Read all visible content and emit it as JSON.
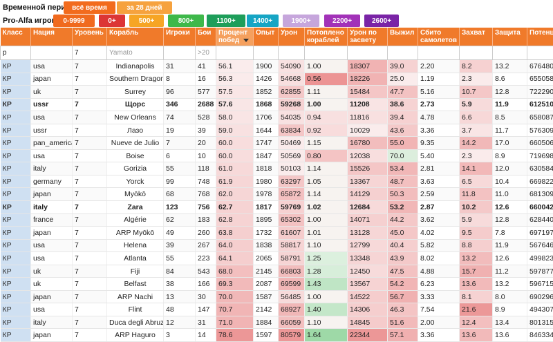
{
  "filters": {
    "period_label": "Временной период:",
    "period_buttons": [
      {
        "label": "всё время",
        "color": "#f26b1d"
      },
      {
        "label": "за 28 дней",
        "color": "#f6a23e"
      }
    ],
    "players_label": "Pro-Alfa игроков:",
    "player_buttons": [
      {
        "label": "0-9999",
        "color": "#f06a1e"
      },
      {
        "label": "0+",
        "color": "#dc3535"
      },
      {
        "label": "500+",
        "color": "#f6a524"
      },
      {
        "label": "800+",
        "color": "#3eb84a"
      },
      {
        "label": "1100+",
        "color": "#1e9e5a"
      },
      {
        "label": "1400+",
        "color": "#16a5c4"
      },
      {
        "label": "1900+",
        "color": "#c6a6dc"
      },
      {
        "label": "2200+",
        "color": "#a232b8"
      },
      {
        "label": "2600+",
        "color": "#7a24a6"
      }
    ]
  },
  "table": {
    "columns": [
      "Класс",
      "Нация",
      "Уровень",
      "Корабль",
      "Игроки",
      "Бои",
      "Процент побед",
      "Опыт",
      "Урон",
      "Потоплено кораблей",
      "Урон по засвету",
      "Выжил",
      "Сбито самолетов",
      "Захват",
      "Защита",
      "Потенциал"
    ],
    "filter_row": {
      "class_value": "р",
      "nation_value": "",
      "tier_value": "7",
      "ship_placeholder": "Yamato",
      "players_value": "",
      "battles_placeholder": ">20"
    },
    "rows": [
      {
        "cls": "КР",
        "nation": "usa",
        "tier": "7",
        "ship": "Indianapolis",
        "players": "31",
        "battles": "41",
        "win": "56.1",
        "exp": "1900",
        "dmg": "54090",
        "kills": "1.00",
        "spot": "18307",
        "surv": "39.0",
        "planes": "2.20",
        "cap": "8.2",
        "def": "13.2",
        "pot": "676480",
        "bold": false
      },
      {
        "cls": "КР",
        "nation": "japan",
        "tier": "7",
        "ship": "Southern Dragon",
        "players": "8",
        "battles": "16",
        "win": "56.3",
        "exp": "1426",
        "dmg": "54668",
        "kills": "0.56",
        "spot": "18226",
        "surv": "25.0",
        "planes": "1.19",
        "cap": "2.3",
        "def": "8.6",
        "pot": "655058",
        "bold": false
      },
      {
        "cls": "КР",
        "nation": "uk",
        "tier": "7",
        "ship": "Surrey",
        "players": "96",
        "battles": "577",
        "win": "57.5",
        "exp": "1852",
        "dmg": "62855",
        "kills": "1.11",
        "spot": "15484",
        "surv": "47.7",
        "planes": "5.16",
        "cap": "10.7",
        "def": "12.8",
        "pot": "722290",
        "bold": false
      },
      {
        "cls": "КР",
        "nation": "ussr",
        "tier": "7",
        "ship": "Щорс",
        "players": "346",
        "battles": "2688",
        "win": "57.6",
        "exp": "1868",
        "dmg": "59268",
        "kills": "1.00",
        "spot": "11208",
        "surv": "38.6",
        "planes": "2.73",
        "cap": "5.9",
        "def": "11.9",
        "pot": "612510",
        "bold": true
      },
      {
        "cls": "КР",
        "nation": "usa",
        "tier": "7",
        "ship": "New Orleans",
        "players": "74",
        "battles": "528",
        "win": "58.0",
        "exp": "1706",
        "dmg": "54035",
        "kills": "0.94",
        "spot": "11816",
        "surv": "39.4",
        "planes": "4.78",
        "cap": "6.6",
        "def": "8.5",
        "pot": "658087",
        "bold": false
      },
      {
        "cls": "КР",
        "nation": "ussr",
        "tier": "7",
        "ship": "Лазо",
        "players": "19",
        "battles": "39",
        "win": "59.0",
        "exp": "1644",
        "dmg": "63834",
        "kills": "0.92",
        "spot": "10029",
        "surv": "43.6",
        "planes": "3.36",
        "cap": "3.7",
        "def": "11.7",
        "pot": "576309",
        "bold": false
      },
      {
        "cls": "КР",
        "nation": "pan_america",
        "tier": "7",
        "ship": "Nueve de Julio",
        "players": "7",
        "battles": "20",
        "win": "60.0",
        "exp": "1747",
        "dmg": "50469",
        "kills": "1.15",
        "spot": "16780",
        "surv": "55.0",
        "planes": "9.35",
        "cap": "14.2",
        "def": "17.0",
        "pot": "660506",
        "bold": false
      },
      {
        "cls": "КР",
        "nation": "usa",
        "tier": "7",
        "ship": "Boise",
        "players": "6",
        "battles": "10",
        "win": "60.0",
        "exp": "1847",
        "dmg": "50569",
        "kills": "0.80",
        "spot": "12038",
        "surv": "70.0",
        "planes": "5.40",
        "cap": "2.3",
        "def": "8.9",
        "pot": "719698",
        "bold": false
      },
      {
        "cls": "КР",
        "nation": "italy",
        "tier": "7",
        "ship": "Gorizia",
        "players": "55",
        "battles": "118",
        "win": "61.0",
        "exp": "1818",
        "dmg": "50103",
        "kills": "1.14",
        "spot": "15526",
        "surv": "53.4",
        "planes": "2.81",
        "cap": "14.1",
        "def": "12.0",
        "pot": "630584",
        "bold": false
      },
      {
        "cls": "КР",
        "nation": "germany",
        "tier": "7",
        "ship": "Yorck",
        "players": "99",
        "battles": "748",
        "win": "61.9",
        "exp": "1980",
        "dmg": "63297",
        "kills": "1.05",
        "spot": "13367",
        "surv": "48.7",
        "planes": "3.63",
        "cap": "6.5",
        "def": "10.4",
        "pot": "669822",
        "bold": false
      },
      {
        "cls": "КР",
        "nation": "japan",
        "tier": "7",
        "ship": "Myōkō",
        "players": "68",
        "battles": "768",
        "win": "62.0",
        "exp": "1978",
        "dmg": "65872",
        "kills": "1.14",
        "spot": "14129",
        "surv": "50.3",
        "planes": "2.59",
        "cap": "11.8",
        "def": "11.0",
        "pot": "681309",
        "bold": false
      },
      {
        "cls": "КР",
        "nation": "italy",
        "tier": "7",
        "ship": "Zara",
        "players": "123",
        "battles": "756",
        "win": "62.7",
        "exp": "1817",
        "dmg": "59769",
        "kills": "1.02",
        "spot": "12684",
        "surv": "53.2",
        "planes": "2.87",
        "cap": "10.2",
        "def": "12.6",
        "pot": "660042",
        "bold": true
      },
      {
        "cls": "КР",
        "nation": "france",
        "tier": "7",
        "ship": "Algérie",
        "players": "62",
        "battles": "183",
        "win": "62.8",
        "exp": "1895",
        "dmg": "65302",
        "kills": "1.00",
        "spot": "14071",
        "surv": "44.2",
        "planes": "3.62",
        "cap": "5.9",
        "def": "12.8",
        "pot": "628440",
        "bold": false
      },
      {
        "cls": "КР",
        "nation": "japan",
        "tier": "7",
        "ship": "ARP Myōkō",
        "players": "49",
        "battles": "260",
        "win": "63.8",
        "exp": "1732",
        "dmg": "61607",
        "kills": "1.01",
        "spot": "13128",
        "surv": "45.0",
        "planes": "4.02",
        "cap": "9.5",
        "def": "7.8",
        "pot": "697197",
        "bold": false
      },
      {
        "cls": "КР",
        "nation": "usa",
        "tier": "7",
        "ship": "Helena",
        "players": "39",
        "battles": "267",
        "win": "64.0",
        "exp": "1838",
        "dmg": "58817",
        "kills": "1.10",
        "spot": "12799",
        "surv": "40.4",
        "planes": "5.82",
        "cap": "8.8",
        "def": "11.9",
        "pot": "567646",
        "bold": false
      },
      {
        "cls": "КР",
        "nation": "usa",
        "tier": "7",
        "ship": "Atlanta",
        "players": "55",
        "battles": "223",
        "win": "64.1",
        "exp": "2065",
        "dmg": "58791",
        "kills": "1.25",
        "spot": "13348",
        "surv": "43.9",
        "planes": "8.02",
        "cap": "13.2",
        "def": "12.6",
        "pot": "499823",
        "bold": false
      },
      {
        "cls": "КР",
        "nation": "uk",
        "tier": "7",
        "ship": "Fiji",
        "players": "84",
        "battles": "543",
        "win": "68.0",
        "exp": "2145",
        "dmg": "66803",
        "kills": "1.28",
        "spot": "12450",
        "surv": "47.5",
        "planes": "4.88",
        "cap": "15.7",
        "def": "11.2",
        "pot": "597877",
        "bold": false
      },
      {
        "cls": "КР",
        "nation": "uk",
        "tier": "7",
        "ship": "Belfast",
        "players": "38",
        "battles": "166",
        "win": "69.3",
        "exp": "2087",
        "dmg": "69599",
        "kills": "1.43",
        "spot": "13567",
        "surv": "54.2",
        "planes": "6.23",
        "cap": "13.6",
        "def": "13.2",
        "pot": "596715",
        "bold": false
      },
      {
        "cls": "КР",
        "nation": "japan",
        "tier": "7",
        "ship": "ARP Nachi",
        "players": "13",
        "battles": "30",
        "win": "70.0",
        "exp": "1587",
        "dmg": "56485",
        "kills": "1.00",
        "spot": "14522",
        "surv": "56.7",
        "planes": "3.33",
        "cap": "8.1",
        "def": "8.0",
        "pot": "690296",
        "bold": false
      },
      {
        "cls": "КР",
        "nation": "usa",
        "tier": "7",
        "ship": "Flint",
        "players": "48",
        "battles": "147",
        "win": "70.7",
        "exp": "2142",
        "dmg": "68927",
        "kills": "1.40",
        "spot": "14306",
        "surv": "46.3",
        "planes": "7.54",
        "cap": "21.6",
        "def": "8.9",
        "pot": "494307",
        "bold": false
      },
      {
        "cls": "КР",
        "nation": "italy",
        "tier": "7",
        "ship": "Duca degli Abruzzi",
        "players": "12",
        "battles": "31",
        "win": "71.0",
        "exp": "1884",
        "dmg": "66059",
        "kills": "1.10",
        "spot": "14845",
        "surv": "51.6",
        "planes": "2.00",
        "cap": "12.4",
        "def": "13.4",
        "pot": "801315",
        "bold": false
      },
      {
        "cls": "КР",
        "nation": "japan",
        "tier": "7",
        "ship": "ARP Haguro",
        "players": "3",
        "battles": "14",
        "win": "78.6",
        "exp": "1597",
        "dmg": "80579",
        "kills": "1.64",
        "spot": "22344",
        "surv": "57.1",
        "planes": "3.36",
        "cap": "13.6",
        "def": "13.6",
        "pot": "846334",
        "bold": false
      }
    ]
  }
}
